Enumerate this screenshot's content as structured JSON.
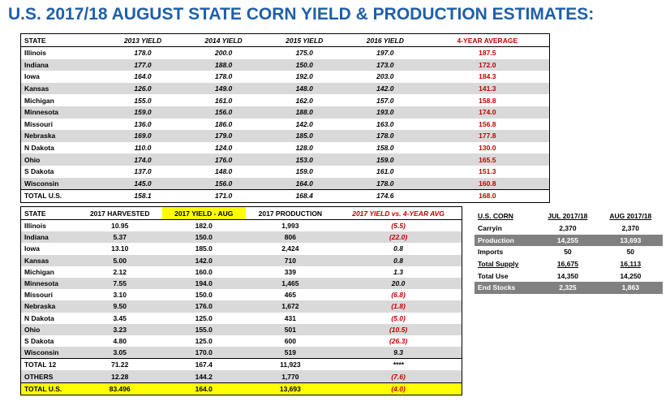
{
  "title": "U.S. 2017/18 AUGUST STATE CORN YIELD & PRODUCTION ESTIMATES:",
  "table1": {
    "headers": [
      "STATE",
      "2013 YIELD",
      "2014 YIELD",
      "2015 YIELD",
      "2016 YIELD",
      "4-YEAR AVERAGE"
    ],
    "rows": [
      [
        "Illinois",
        "178.0",
        "200.0",
        "175.0",
        "197.0",
        "187.5"
      ],
      [
        "Indiana",
        "177.0",
        "188.0",
        "150.0",
        "173.0",
        "172.0"
      ],
      [
        "Iowa",
        "164.0",
        "178.0",
        "192.0",
        "203.0",
        "184.3"
      ],
      [
        "Kansas",
        "126.0",
        "149.0",
        "148.0",
        "142.0",
        "141.3"
      ],
      [
        "Michigan",
        "155.0",
        "161.0",
        "162.0",
        "157.0",
        "158.8"
      ],
      [
        "Minnesota",
        "159.0",
        "156.0",
        "188.0",
        "193.0",
        "174.0"
      ],
      [
        "Missouri",
        "136.0",
        "186.0",
        "142.0",
        "163.0",
        "156.8"
      ],
      [
        "Nebraska",
        "169.0",
        "179.0",
        "185.0",
        "178.0",
        "177.8"
      ],
      [
        "N Dakota",
        "110.0",
        "124.0",
        "128.0",
        "158.0",
        "130.0"
      ],
      [
        "Ohio",
        "174.0",
        "176.0",
        "153.0",
        "159.0",
        "165.5"
      ],
      [
        "S Dakota",
        "137.0",
        "148.0",
        "159.0",
        "161.0",
        "151.3"
      ],
      [
        "Wisconsin",
        "145.0",
        "156.0",
        "164.0",
        "178.0",
        "160.8"
      ],
      [
        "TOTAL U.S.",
        "158.1",
        "171.0",
        "168.4",
        "174.6",
        "168.0"
      ]
    ]
  },
  "table2": {
    "headers": [
      "STATE",
      "2017 HARVESTED",
      "2017 YIELD - AUG",
      "2017 PRODUCTION",
      "2017 YIELD vs. 4-YEAR AVG"
    ],
    "rows": [
      [
        "Illinois",
        "10.95",
        "182.0",
        "1,993",
        "(5.5)"
      ],
      [
        "Indiana",
        "5.37",
        "150.0",
        "806",
        "(22.0)"
      ],
      [
        "Iowa",
        "13.10",
        "185.0",
        "2,424",
        "0.8"
      ],
      [
        "Kansas",
        "5.00",
        "142.0",
        "710",
        "0.8"
      ],
      [
        "Michigan",
        "2.12",
        "160.0",
        "339",
        "1.3"
      ],
      [
        "Minnesota",
        "7.55",
        "194.0",
        "1,465",
        "20.0"
      ],
      [
        "Missouri",
        "3.10",
        "150.0",
        "465",
        "(6.8)"
      ],
      [
        "Nebraska",
        "9.50",
        "176.0",
        "1,672",
        "(1.8)"
      ],
      [
        "N Dakota",
        "3.45",
        "125.0",
        "431",
        "(5.0)"
      ],
      [
        "Ohio",
        "3.23",
        "155.0",
        "501",
        "(10.5)"
      ],
      [
        "S Dakota",
        "4.80",
        "125.0",
        "600",
        "(26.3)"
      ],
      [
        "Wisconsin",
        "3.05",
        "170.0",
        "519",
        "9.3"
      ],
      [
        "TOTAL 12",
        "71.22",
        "167.4",
        "11,923",
        "****"
      ],
      [
        "OTHERS",
        "12.28",
        "144.2",
        "1,770",
        "(7.6)"
      ],
      [
        "TOTAL U.S.",
        "83.496",
        "164.0",
        "13,693",
        "(4.0)"
      ]
    ]
  },
  "table3": {
    "headers": [
      "U.S. CORN",
      "JUL 2017/18",
      "AUG 2017/18"
    ],
    "rows": [
      [
        "Carryin",
        "2,370",
        "2,370"
      ],
      [
        "Production",
        "14,255",
        "13,693"
      ],
      [
        "Imports",
        "50",
        "50"
      ],
      [
        "Total Supply",
        "16,675",
        "16,113"
      ],
      [
        "Total Use",
        "14,350",
        "14,250"
      ],
      [
        "End Stocks",
        "2,325",
        "1,863"
      ]
    ]
  },
  "colors": {
    "title": "#1f5fa8",
    "negative": "#c00000",
    "highlight": "#ffff00",
    "shade": "#d9d9d9",
    "dark": "#808080"
  }
}
